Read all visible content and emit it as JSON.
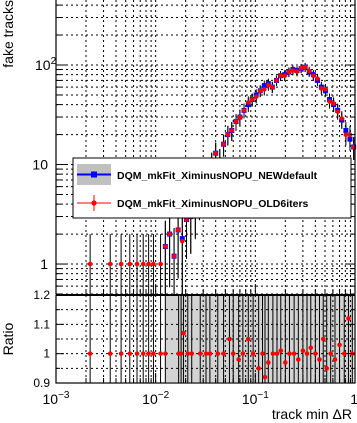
{
  "chart_data": {
    "type": "scatter",
    "x_scale": "log",
    "xlim": [
      0.001,
      1.0
    ],
    "xlabel": "track min ΔR",
    "grid": true,
    "x_ticks": [
      {
        "value": 0.001,
        "base": "10",
        "exp": "−3"
      },
      {
        "value": 0.01,
        "base": "10",
        "exp": "−2"
      },
      {
        "value": 0.1,
        "base": "10",
        "exp": "−1"
      },
      {
        "value": 1.0,
        "base": "1",
        "exp": ""
      }
    ],
    "top_panel": {
      "ylabel": "fake tracks",
      "y_scale": "log",
      "ylim": [
        0.5,
        450
      ],
      "y_ticks": [
        {
          "value": 1,
          "base": "1",
          "exp": ""
        },
        {
          "value": 10,
          "base": "10",
          "exp": ""
        },
        {
          "value": 100,
          "base": "10",
          "exp": "2"
        }
      ]
    },
    "bottom_panel": {
      "ylabel": "Ratio",
      "ylim": [
        0.9,
        1.2
      ],
      "y_ticks": [
        {
          "value": 0.9,
          "label": "0.9"
        },
        {
          "value": 1.0,
          "label": "1"
        },
        {
          "value": 1.1,
          "label": "1.1"
        },
        {
          "value": 1.2,
          "label": "1.2"
        }
      ],
      "ratio_band_color": "#d3d3d3",
      "ratio_points": [
        [
          0.0022,
          1.0
        ],
        [
          0.0035,
          1.0
        ],
        [
          0.0045,
          1.0
        ],
        [
          0.0055,
          1.0
        ],
        [
          0.0065,
          1.0
        ],
        [
          0.0075,
          1.0
        ],
        [
          0.0085,
          1.0
        ],
        [
          0.0095,
          1.0
        ],
        [
          0.0112,
          1.0
        ],
        [
          0.0125,
          1.0
        ],
        [
          0.017,
          1.0
        ],
        [
          0.018,
          1.0
        ],
        [
          0.019,
          1.07
        ],
        [
          0.021,
          1.0
        ],
        [
          0.023,
          1.0
        ],
        [
          0.028,
          1.0
        ],
        [
          0.032,
          1.0
        ],
        [
          0.035,
          1.0
        ],
        [
          0.042,
          1.0
        ],
        [
          0.048,
          1.0
        ],
        [
          0.055,
          1.05
        ],
        [
          0.06,
          1.0
        ],
        [
          0.068,
          0.98
        ],
        [
          0.075,
          1.0
        ],
        [
          0.085,
          1.05
        ],
        [
          0.095,
          1.0
        ],
        [
          0.108,
          0.95
        ],
        [
          0.118,
          1.0
        ],
        [
          0.125,
          0.92
        ],
        [
          0.135,
          0.97
        ],
        [
          0.15,
          1.0
        ],
        [
          0.165,
          1.0
        ],
        [
          0.18,
          1.01
        ],
        [
          0.2,
          0.97
        ],
        [
          0.22,
          1.0
        ],
        [
          0.245,
          1.0
        ],
        [
          0.27,
          0.98
        ],
        [
          0.3,
          1.01
        ],
        [
          0.33,
          1.0
        ],
        [
          0.36,
          1.02
        ],
        [
          0.4,
          1.0
        ],
        [
          0.44,
          0.98
        ],
        [
          0.48,
          1.05
        ],
        [
          0.52,
          0.95
        ],
        [
          0.57,
          1.0
        ],
        [
          0.63,
          0.98
        ],
        [
          0.7,
          1.03
        ],
        [
          0.78,
          1.0
        ],
        [
          0.86,
          1.12
        ],
        [
          0.94,
          1.0
        ]
      ]
    },
    "series": [
      {
        "name": "DQM_mkFit_XiminusNOPU_NEWdefault",
        "color": "#0000ff",
        "marker": "square",
        "points": [
          [
            0.0125,
            1.5
          ],
          [
            0.0138,
            2.0
          ],
          [
            0.0153,
            1.2
          ],
          [
            0.0168,
            2.2
          ],
          [
            0.0185,
            1.8
          ],
          [
            0.0204,
            2.8
          ],
          [
            0.0225,
            3.0
          ],
          [
            0.025,
            3.8
          ],
          [
            0.0275,
            5.0
          ],
          [
            0.03,
            6.0
          ],
          [
            0.033,
            8.0
          ],
          [
            0.0365,
            10.0
          ],
          [
            0.04,
            13.0
          ],
          [
            0.044,
            11.0
          ],
          [
            0.048,
            16.0
          ],
          [
            0.053,
            20.0
          ],
          [
            0.058,
            22.0
          ],
          [
            0.064,
            27.0
          ],
          [
            0.07,
            30.0
          ],
          [
            0.077,
            35.0
          ],
          [
            0.085,
            40.0
          ],
          [
            0.093,
            45.0
          ],
          [
            0.102,
            50.0
          ],
          [
            0.112,
            55.0
          ],
          [
            0.123,
            62.0
          ],
          [
            0.135,
            65.0
          ],
          [
            0.148,
            60.0
          ],
          [
            0.163,
            70.0
          ],
          [
            0.179,
            78.0
          ],
          [
            0.197,
            80.0
          ],
          [
            0.217,
            85.0
          ],
          [
            0.238,
            90.0
          ],
          [
            0.262,
            88.0
          ],
          [
            0.288,
            92.0
          ],
          [
            0.316,
            95.0
          ],
          [
            0.347,
            85.0
          ],
          [
            0.382,
            80.0
          ],
          [
            0.42,
            70.0
          ],
          [
            0.46,
            60.0
          ],
          [
            0.505,
            55.0
          ],
          [
            0.555,
            45.0
          ],
          [
            0.61,
            40.0
          ],
          [
            0.67,
            35.0
          ],
          [
            0.737,
            28.0
          ],
          [
            0.81,
            22.0
          ],
          [
            0.89,
            18.0
          ],
          [
            0.97,
            15.0
          ]
        ]
      },
      {
        "name": "DQM_mkFit_XiminusNOPU_OLD6iters",
        "color": "#ff0000",
        "marker": "circle",
        "points": [
          [
            0.0022,
            1.0
          ],
          [
            0.0035,
            1.0
          ],
          [
            0.0045,
            1.0
          ],
          [
            0.0055,
            1.0
          ],
          [
            0.0065,
            1.0
          ],
          [
            0.0075,
            1.0
          ],
          [
            0.0085,
            1.0
          ],
          [
            0.0095,
            1.0
          ],
          [
            0.0112,
            1.0
          ],
          [
            0.0125,
            1.5
          ],
          [
            0.0138,
            2.0
          ],
          [
            0.0153,
            1.2
          ],
          [
            0.0168,
            2.2
          ],
          [
            0.0185,
            1.7
          ],
          [
            0.0204,
            2.8
          ],
          [
            0.0225,
            3.0
          ],
          [
            0.025,
            3.7
          ],
          [
            0.0275,
            5.0
          ],
          [
            0.03,
            6.0
          ],
          [
            0.033,
            8.0
          ],
          [
            0.0365,
            10.0
          ],
          [
            0.04,
            13.0
          ],
          [
            0.044,
            11.0
          ],
          [
            0.048,
            16.0
          ],
          [
            0.053,
            20.0
          ],
          [
            0.058,
            22.0
          ],
          [
            0.064,
            27.0
          ],
          [
            0.07,
            30.0
          ],
          [
            0.077,
            35.0
          ],
          [
            0.085,
            42.0
          ],
          [
            0.093,
            45.0
          ],
          [
            0.102,
            48.0
          ],
          [
            0.112,
            55.0
          ],
          [
            0.123,
            57.0
          ],
          [
            0.135,
            63.0
          ],
          [
            0.148,
            60.0
          ],
          [
            0.163,
            70.0
          ],
          [
            0.179,
            78.0
          ],
          [
            0.197,
            78.0
          ],
          [
            0.217,
            85.0
          ],
          [
            0.238,
            88.0
          ],
          [
            0.262,
            86.0
          ],
          [
            0.288,
            93.0
          ],
          [
            0.316,
            95.0
          ],
          [
            0.347,
            87.0
          ],
          [
            0.382,
            78.0
          ],
          [
            0.42,
            73.0
          ],
          [
            0.46,
            58.0
          ],
          [
            0.505,
            57.0
          ],
          [
            0.555,
            43.0
          ],
          [
            0.61,
            41.0
          ],
          [
            0.67,
            34.0
          ],
          [
            0.737,
            29.0
          ],
          [
            0.81,
            20.0
          ],
          [
            0.89,
            20.0
          ],
          [
            0.97,
            15.0
          ]
        ]
      }
    ]
  }
}
